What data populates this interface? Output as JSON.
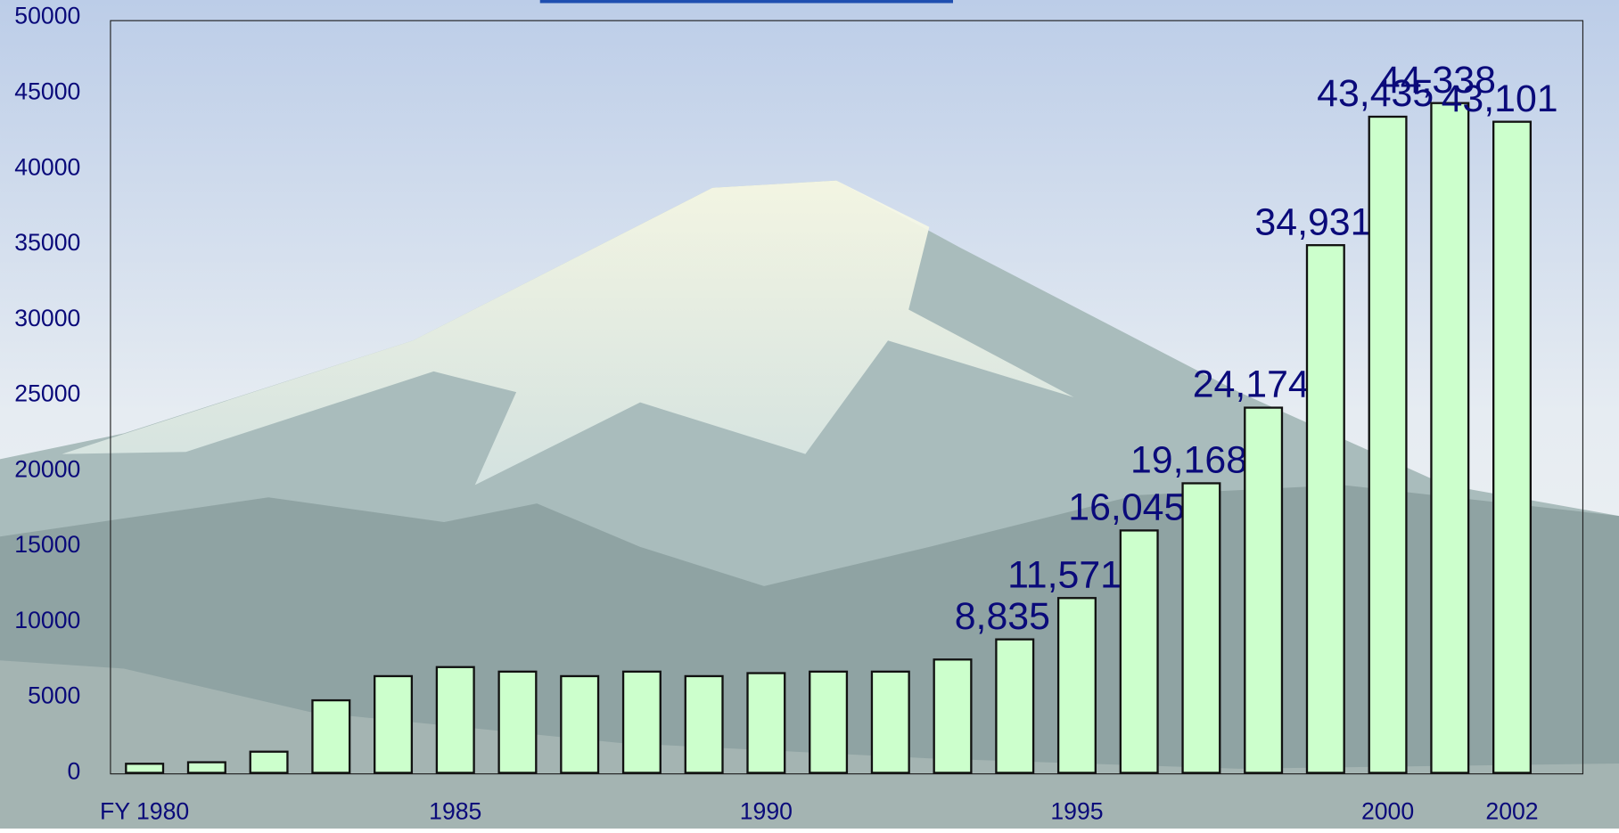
{
  "chart_data": {
    "type": "bar",
    "categories": [
      "FY 1980",
      null,
      null,
      null,
      null,
      "1985",
      null,
      null,
      null,
      null,
      "1990",
      null,
      null,
      null,
      null,
      "1995",
      null,
      null,
      null,
      null,
      "2000",
      null,
      "2002"
    ],
    "values": [
      600,
      700,
      1400,
      4800,
      6400,
      7000,
      6700,
      6400,
      6700,
      6400,
      6600,
      6700,
      6700,
      7500,
      8835,
      11571,
      16045,
      19168,
      24174,
      34931,
      43435,
      44338,
      43101
    ],
    "value_labels": [
      null,
      null,
      null,
      null,
      null,
      null,
      null,
      null,
      null,
      null,
      null,
      null,
      null,
      null,
      "8,835",
      "11,571",
      "16,045",
      "19,168",
      "24,174",
      "34,931",
      "43,435",
      "44,338",
      "43,101"
    ],
    "color": "#ccffcc",
    "ylim": [
      0,
      50000
    ],
    "yticks": [
      0,
      5000,
      10000,
      15000,
      20000,
      25000,
      30000,
      35000,
      40000,
      45000,
      50000
    ]
  }
}
